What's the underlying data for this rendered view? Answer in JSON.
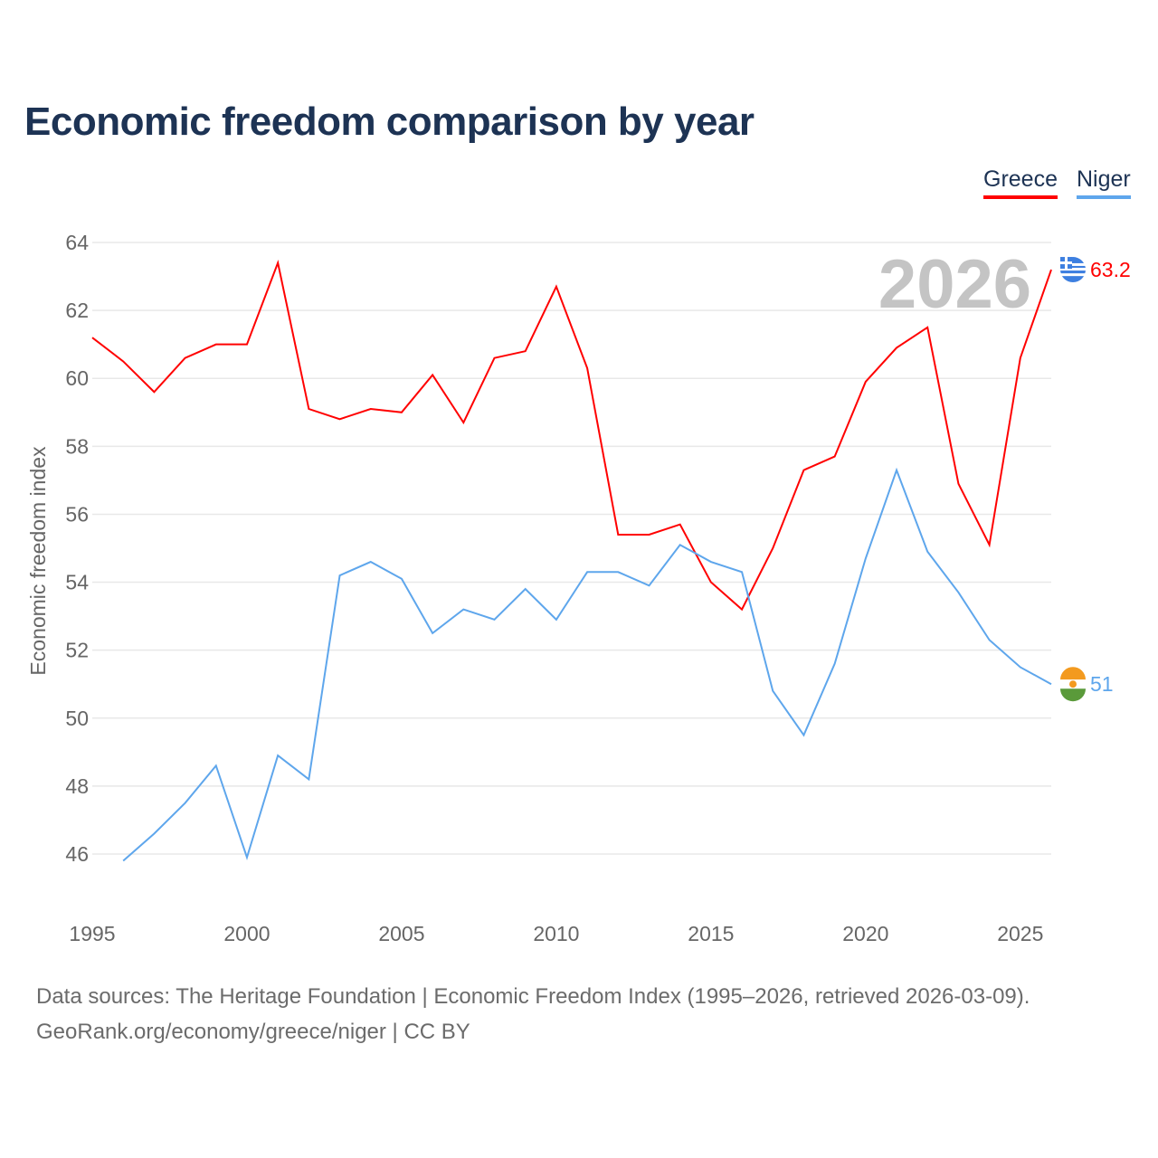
{
  "title": "Economic freedom comparison by year",
  "legend": [
    {
      "name": "Greece",
      "color": "#ff0000"
    },
    {
      "name": "Niger",
      "color": "#5ea6ec"
    }
  ],
  "watermark_year": "2026",
  "sources": {
    "line1": "Data sources: The Heritage Foundation | Economic Freedom Index (1995–2026, retrieved 2026-03-09).",
    "line2": "GeoRank.org/economy/greece/niger | CC BY"
  },
  "chart_data": {
    "type": "line",
    "title": "Economic freedom comparison by year",
    "xlabel": "",
    "ylabel": "Economic freedom index",
    "xlim": [
      1995,
      2026
    ],
    "ylim": [
      44.5,
      64.3
    ],
    "xticks": [
      1995,
      2000,
      2005,
      2010,
      2015,
      2020,
      2025
    ],
    "yticks": [
      46,
      48,
      50,
      52,
      54,
      56,
      58,
      60,
      62,
      64
    ],
    "grid": true,
    "legend_position": "top-right",
    "series": [
      {
        "name": "Greece",
        "color": "#ff0000",
        "end_label": "63.2",
        "x": [
          1995,
          1996,
          1997,
          1998,
          1999,
          2000,
          2001,
          2002,
          2003,
          2004,
          2005,
          2006,
          2007,
          2008,
          2009,
          2010,
          2011,
          2012,
          2013,
          2014,
          2015,
          2016,
          2017,
          2018,
          2019,
          2020,
          2021,
          2022,
          2023,
          2024,
          2025,
          2026
        ],
        "values": [
          61.2,
          60.5,
          59.6,
          60.6,
          61.0,
          61.0,
          63.4,
          59.1,
          58.8,
          59.1,
          59.0,
          60.1,
          58.7,
          60.6,
          60.8,
          62.7,
          60.3,
          55.4,
          55.4,
          55.7,
          54.0,
          53.2,
          55.0,
          57.3,
          57.7,
          59.9,
          60.9,
          61.5,
          56.9,
          55.1,
          60.6,
          63.2
        ]
      },
      {
        "name": "Niger",
        "color": "#5ea6ec",
        "end_label": "51",
        "x": [
          1996,
          1997,
          1998,
          1999,
          2000,
          2001,
          2002,
          2003,
          2004,
          2005,
          2006,
          2007,
          2008,
          2009,
          2010,
          2011,
          2012,
          2013,
          2014,
          2015,
          2016,
          2017,
          2018,
          2019,
          2020,
          2021,
          2022,
          2023,
          2024,
          2025,
          2026
        ],
        "values": [
          45.8,
          46.6,
          47.5,
          48.6,
          45.9,
          48.9,
          48.2,
          54.2,
          54.6,
          54.1,
          52.5,
          53.2,
          52.9,
          53.8,
          52.9,
          54.3,
          54.3,
          53.9,
          55.1,
          54.6,
          54.3,
          50.8,
          49.5,
          51.6,
          54.7,
          57.3,
          54.9,
          53.7,
          52.3,
          51.5,
          51.0
        ]
      }
    ]
  }
}
